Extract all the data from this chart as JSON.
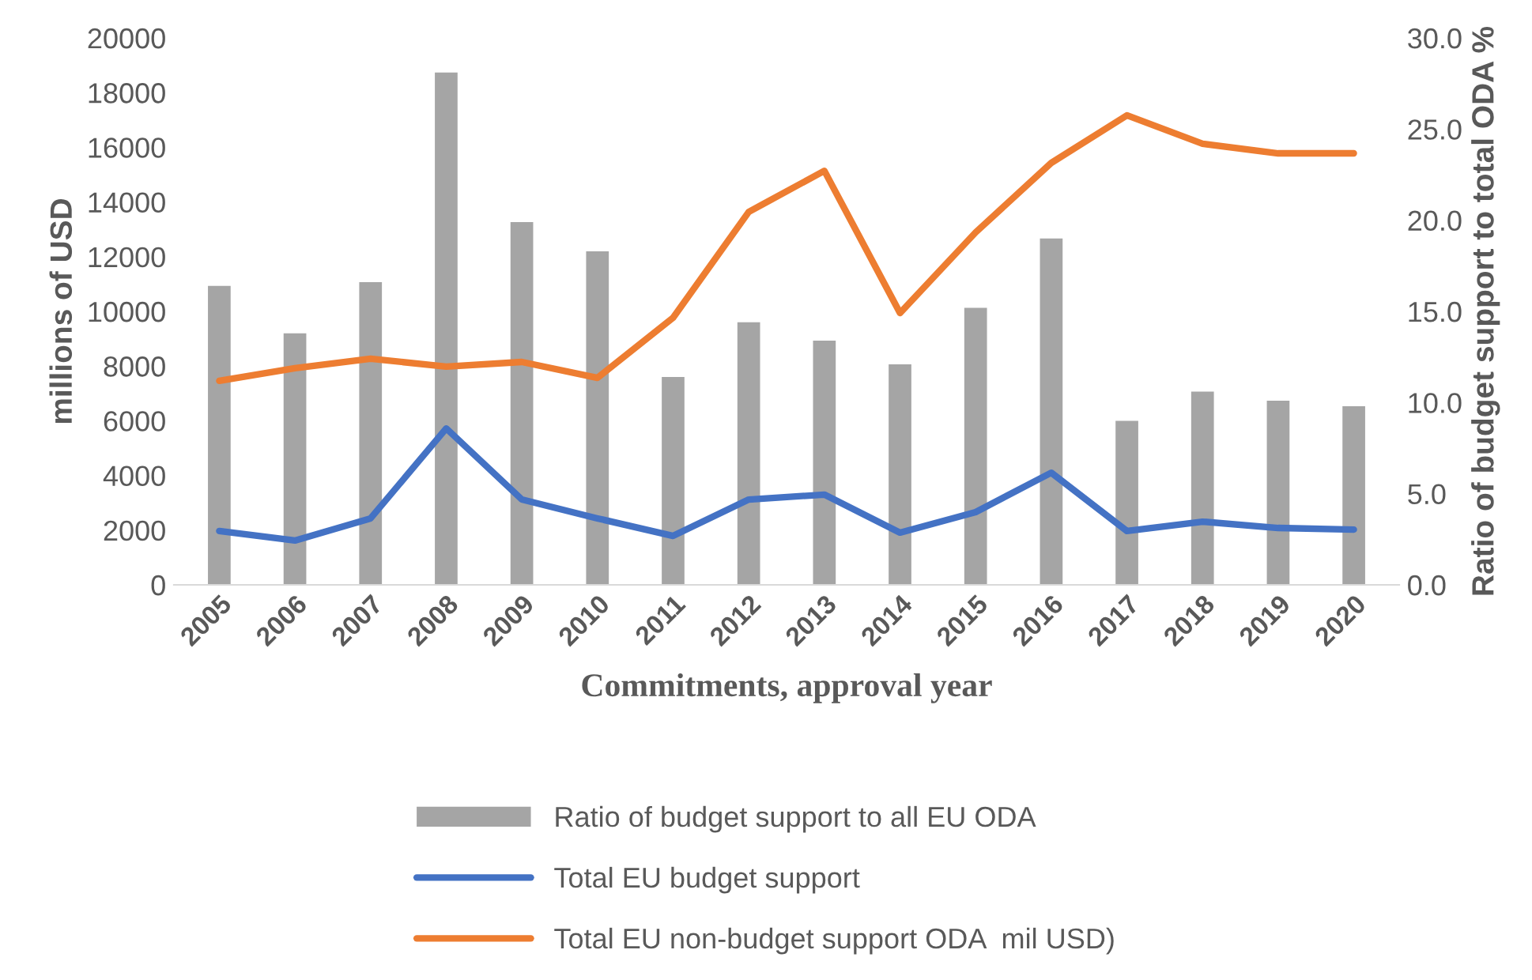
{
  "chart_data": {
    "type": "bar",
    "xlabel": "Commitments, approval year",
    "ylabel": "millions of USD",
    "y2label": "Ratio of budget support to total ODA %",
    "categories": [
      "2005",
      "2006",
      "2007",
      "2008",
      "2009",
      "2010",
      "2011",
      "2012",
      "2013",
      "2014",
      "2015",
      "2016",
      "2017",
      "2018",
      "2019",
      "2020"
    ],
    "series": [
      {
        "name": "Ratio of budget support to all EU ODA",
        "axis": "y2",
        "color": "#a5a5a5",
        "values": [
          16.4,
          13.8,
          16.6,
          28.1,
          19.9,
          18.3,
          11.4,
          14.4,
          13.4,
          12.1,
          15.2,
          19.0,
          9.0,
          10.6,
          10.1,
          9.8
        ]
      },
      {
        "name": "Total EU budget support",
        "type": "line",
        "color": "#4472c4",
        "values": [
          1970,
          1620,
          2430,
          5720,
          3120,
          2430,
          1790,
          3120,
          3300,
          1910,
          2660,
          4100,
          1970,
          2310,
          2080,
          2020
        ]
      },
      {
        "name": "Total EU non-budget support ODA  mil USD)",
        "type": "line",
        "color": "#ed7d31",
        "values": [
          7460,
          7920,
          8270,
          7980,
          8150,
          7570,
          9770,
          13640,
          15140,
          9940,
          12890,
          15430,
          17170,
          16130,
          15780,
          15780
        ]
      }
    ],
    "ylim": [
      0,
      20000
    ],
    "yticks": [
      0,
      2000,
      4000,
      6000,
      8000,
      10000,
      12000,
      14000,
      16000,
      18000,
      20000
    ],
    "y2lim": [
      0,
      30
    ],
    "y2ticks": [
      {
        "value": 0,
        "label": "0.0"
      },
      {
        "value": 5,
        "label": "5.0"
      },
      {
        "value": 10,
        "label": "10.0"
      },
      {
        "value": 15,
        "label": "15.0"
      },
      {
        "value": 20,
        "label": "20.0"
      },
      {
        "value": 25,
        "label": "25.0"
      },
      {
        "value": 30,
        "label": "30.0"
      }
    ],
    "grid": false,
    "legend": "bottom"
  }
}
